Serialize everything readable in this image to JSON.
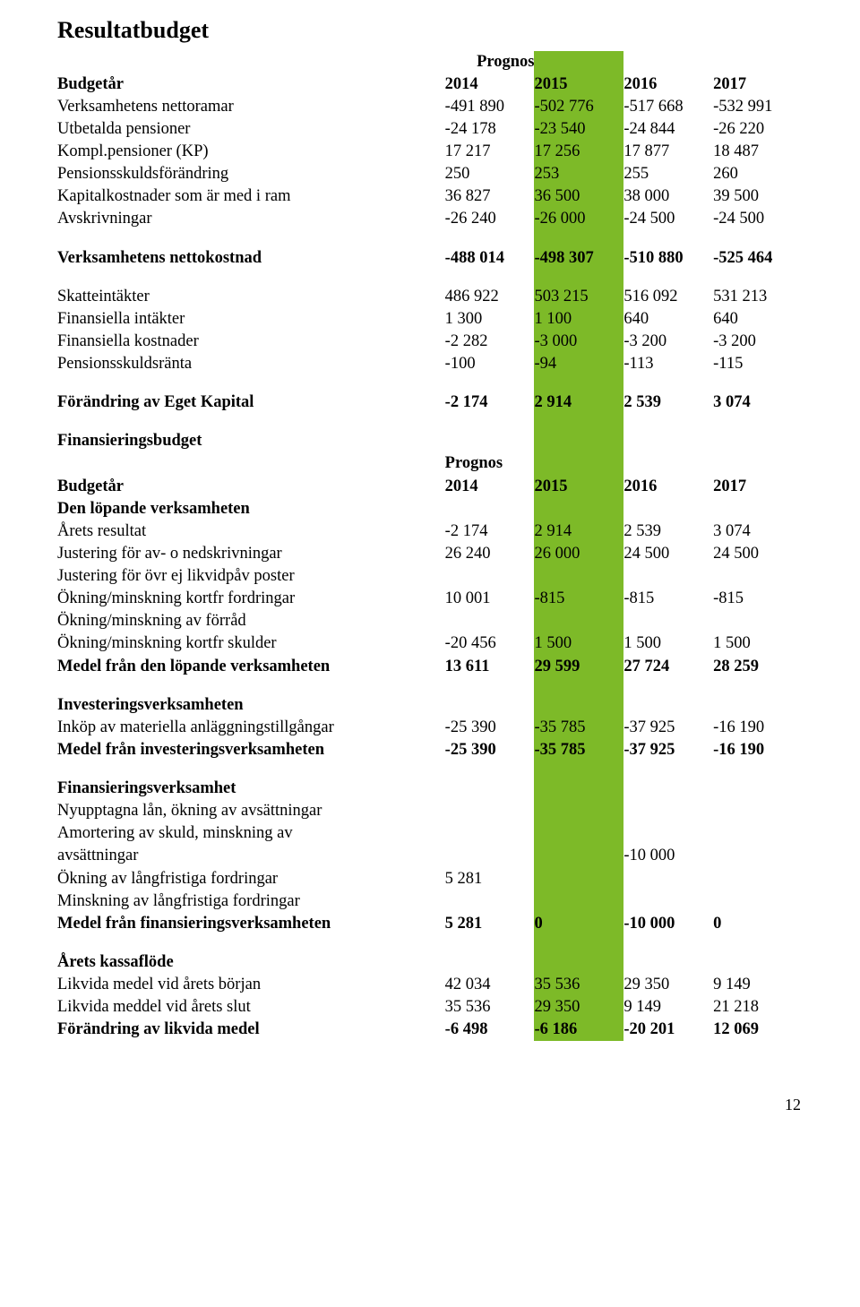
{
  "page": {
    "number": "12"
  },
  "doc": {
    "title": "Resultatbudget",
    "fonts": {
      "body_family": "Times New Roman",
      "body_size_pt": 14,
      "title_size_pt": 20
    },
    "highlight_color": "#7dba28",
    "background_color": "#ffffff",
    "text_color": "#000000"
  },
  "table1": {
    "header_label": "Budgetår",
    "prognos_label": "Prognos",
    "years": [
      "2014",
      "2015",
      "2016",
      "2017"
    ],
    "rows": [
      {
        "label": "Verksamhetens nettoramar",
        "v": [
          "-491 890",
          "-502 776",
          "-517 668",
          "-532 991"
        ]
      },
      {
        "label": "Utbetalda pensioner",
        "v": [
          "-24 178",
          "-23 540",
          "-24 844",
          "-26 220"
        ]
      },
      {
        "label": "Kompl.pensioner (KP)",
        "v": [
          "17 217",
          "17 256",
          "17 877",
          "18 487"
        ]
      },
      {
        "label": "Pensionsskuldsförändring",
        "v": [
          "250",
          "253",
          "255",
          "260"
        ]
      },
      {
        "label": "Kapitalkostnader som är med i ram",
        "v": [
          "36 827",
          "36 500",
          "38 000",
          "39 500"
        ]
      },
      {
        "label": "Avskrivningar",
        "v": [
          "-26 240",
          "-26 000",
          "-24 500",
          "-24 500"
        ]
      }
    ],
    "nettokostnad": {
      "label": "Verksamhetens nettokostnad",
      "v": [
        "-488 014",
        "-498 307",
        "-510 880",
        "-525 464"
      ]
    },
    "rows2": [
      {
        "label": "Skatteintäkter",
        "v": [
          "486 922",
          "503 215",
          "516 092",
          "531 213"
        ]
      },
      {
        "label": "Finansiella intäkter",
        "v": [
          "1 300",
          "1 100",
          "640",
          "640"
        ]
      },
      {
        "label": "Finansiella kostnader",
        "v": [
          "-2 282",
          "-3 000",
          "-3 200",
          "-3 200"
        ]
      },
      {
        "label": "Pensionsskuldsränta",
        "v": [
          "-100",
          "-94",
          "-113",
          "-115"
        ]
      }
    ],
    "forandring": {
      "label": "Förändring av Eget Kapital",
      "v": [
        "-2 174",
        "2 914",
        "2 539",
        "3 074"
      ]
    }
  },
  "table2": {
    "title": "Finansieringsbudget",
    "header_label": "Budgetår",
    "prognos_label": "Prognos",
    "years": [
      "2014",
      "2015",
      "2016",
      "2017"
    ],
    "sec1_label": "Den löpande verksamheten",
    "sec1_rows": [
      {
        "label": "Årets resultat",
        "v": [
          "-2 174",
          "2 914",
          "2 539",
          "3 074"
        ]
      },
      {
        "label": "Justering för av- o nedskrivningar",
        "v": [
          "26 240",
          "26 000",
          "24 500",
          "24 500"
        ]
      },
      {
        "label": "Justering för övr ej likvidpåv poster",
        "v": [
          "",
          "",
          "",
          ""
        ]
      },
      {
        "label": "Ökning/minskning kortfr fordringar",
        "v": [
          "10 001",
          "-815",
          "-815",
          "-815"
        ]
      },
      {
        "label": "Ökning/minskning av förråd",
        "v": [
          "",
          "",
          "",
          ""
        ]
      },
      {
        "label": "Ökning/minskning kortfr skulder",
        "v": [
          "-20 456",
          "1 500",
          "1 500",
          "1 500"
        ]
      }
    ],
    "sec1_total": {
      "label": "Medel från den löpande verksamheten",
      "v": [
        "13 611",
        "29 599",
        "27 724",
        "28 259"
      ]
    },
    "sec2_label": "Investeringsverksamheten",
    "sec2_rows": [
      {
        "label": "Inköp av materiella anläggningstillgångar",
        "v": [
          "-25 390",
          "-35 785",
          "-37 925",
          "-16 190"
        ]
      }
    ],
    "sec2_total": {
      "label": "Medel från investeringsverksamheten",
      "v": [
        "-25 390",
        "-35 785",
        "-37 925",
        "-16 190"
      ]
    },
    "sec3_label": "Finansieringsverksamhet",
    "sec3_rows": [
      {
        "label": "Nyupptagna lån, ökning av avsättningar",
        "v": [
          "",
          "",
          "",
          ""
        ]
      },
      {
        "label": "Amortering av skuld, minskning av avsättningar",
        "v": [
          "",
          "",
          "-10 000",
          ""
        ],
        "wrap": true,
        "line1": "Amortering av skuld, minskning av",
        "line2": "avsättningar"
      },
      {
        "label": "Ökning av långfristiga fordringar",
        "v": [
          "5 281",
          "",
          "",
          ""
        ]
      },
      {
        "label": "Minskning av långfristiga fordringar",
        "v": [
          "",
          "",
          "",
          ""
        ]
      }
    ],
    "sec3_total": {
      "label": "Medel från finansieringsverksamheten",
      "v": [
        "5 281",
        "0",
        "-10 000",
        "0"
      ]
    },
    "sec4_label": "Årets kassaflöde",
    "sec4_rows": [
      {
        "label": "Likvida medel vid årets början",
        "v": [
          "42 034",
          "35 536",
          "29 350",
          "9 149"
        ]
      },
      {
        "label": "Likvida meddel vid årets slut",
        "v": [
          "35 536",
          "29 350",
          "9 149",
          "21 218"
        ]
      }
    ],
    "sec4_total": {
      "label": "Förändring av likvida medel",
      "v": [
        "-6 498",
        "-6 186",
        "-20 201",
        "12 069"
      ]
    }
  }
}
